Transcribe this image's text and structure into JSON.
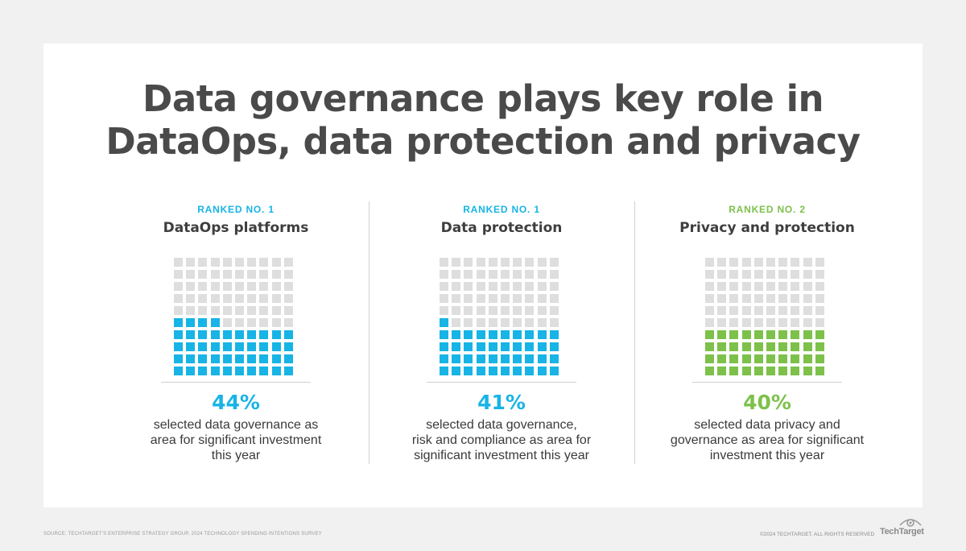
{
  "title_lines": [
    "Data governance plays key role in",
    "DataOps, data protection and privacy"
  ],
  "colors": {
    "blue": "#17b4e5",
    "green": "#7dc14b",
    "empty": "#dedede"
  },
  "chart_data": {
    "type": "waffle",
    "grid": {
      "rows": 10,
      "cols": 10
    },
    "panels": [
      {
        "rank": "RANKED NO. 1",
        "label": "DataOps platforms",
        "percent": 44,
        "percent_text": "44%",
        "color": "#17b4e5",
        "description": "selected data governance as\narea for significant investment\nthis year"
      },
      {
        "rank": "RANKED NO. 1",
        "label": "Data protection",
        "percent": 41,
        "percent_text": "41%",
        "color": "#17b4e5",
        "description": "selected data governance,\nrisk and compliance as area for\nsignificant investment this year"
      },
      {
        "rank": "RANKED NO. 2",
        "label": "Privacy and protection",
        "percent": 40,
        "percent_text": "40%",
        "color": "#7dc14b",
        "description": "selected data privacy and\ngovernance as area for significant\ninvestment this year"
      }
    ]
  },
  "footer": {
    "source": "SOURCE: TECHTARGET'S ENTERPRISE STRATEGY GROUP, 2024 TECHNOLOGY SPENDING INTENTIONS SURVEY",
    "copyright": "©2024 TECHTARGET. ALL RIGHTS RESERVED",
    "brand": "TechTarget"
  }
}
